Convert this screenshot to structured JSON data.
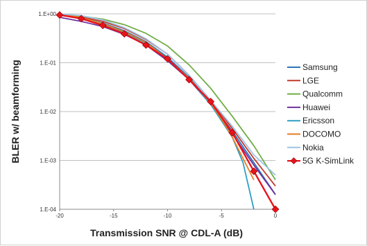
{
  "chart_data": {
    "type": "line",
    "xlabel": "Transmission SNR  @ CDL-A (dB)",
    "ylabel": "BLER w/ beamforming",
    "xlim": [
      -20,
      0
    ],
    "ylim": [
      0.0001,
      1
    ],
    "yscale": "log",
    "grid": "horizontal",
    "legend": "right",
    "xticks": [
      "-20",
      "-15",
      "-10",
      "-5",
      "0"
    ],
    "yticks": [
      "1.E+00",
      "1.E-01",
      "1.E-02",
      "1.E-03",
      "1.E-04"
    ],
    "series": [
      {
        "name": "Samsung",
        "color": "#2e75b6",
        "marker": "none",
        "x": [
          -20,
          -18,
          -16,
          -14,
          -12,
          -10,
          -8,
          -6,
          -4,
          -2,
          0
        ],
        "y": [
          1.0,
          0.83,
          0.65,
          0.45,
          0.27,
          0.13,
          0.05,
          0.015,
          0.004,
          0.0009,
          0.0002
        ]
      },
      {
        "name": "LGE",
        "color": "#c0392b",
        "marker": "none",
        "x": [
          -20,
          -18,
          -16,
          -14,
          -12,
          -10,
          -8,
          -6,
          -4,
          -2,
          0
        ],
        "y": [
          1.0,
          0.86,
          0.7,
          0.5,
          0.3,
          0.15,
          0.055,
          0.017,
          0.0045,
          0.0011,
          0.0003
        ]
      },
      {
        "name": "Qualcomm",
        "color": "#70ad47",
        "marker": "none",
        "x": [
          -20,
          -18,
          -16,
          -14,
          -12,
          -10,
          -8,
          -6,
          -4,
          -2,
          0
        ],
        "y": [
          1.0,
          0.9,
          0.78,
          0.6,
          0.4,
          0.22,
          0.09,
          0.03,
          0.008,
          0.002,
          0.0004
        ]
      },
      {
        "name": "Huawei",
        "color": "#7030a0",
        "marker": "none",
        "x": [
          -20,
          -18,
          -16,
          -14,
          -12,
          -10,
          -8,
          -6,
          -4,
          -2,
          0
        ],
        "y": [
          0.85,
          0.7,
          0.55,
          0.38,
          0.23,
          0.11,
          0.045,
          0.014,
          0.0035,
          0.0008,
          0.0002
        ]
      },
      {
        "name": "Ericsson",
        "color": "#2e9fc4",
        "marker": "none",
        "x": [
          -20,
          -18,
          -16,
          -14,
          -12,
          -10,
          -8,
          -6,
          -4,
          -3,
          -2
        ],
        "y": [
          1.0,
          0.82,
          0.62,
          0.42,
          0.25,
          0.12,
          0.047,
          0.014,
          0.003,
          0.0009,
          0.0001
        ]
      },
      {
        "name": "DOCOMO",
        "color": "#e67e22",
        "marker": "none",
        "x": [
          -20,
          -18,
          -16,
          -14,
          -12,
          -10,
          -8,
          -6,
          -5,
          -4,
          -3,
          -2
        ],
        "y": [
          1.0,
          0.84,
          0.63,
          0.43,
          0.26,
          0.12,
          0.048,
          0.015,
          0.007,
          0.003,
          0.0011,
          0.0004
        ]
      },
      {
        "name": "Nokia",
        "color": "#9dc3e6",
        "marker": "none",
        "x": [
          -20,
          -18,
          -16,
          -14,
          -12,
          -10,
          -8,
          -6,
          -4,
          -2,
          0
        ],
        "y": [
          1.0,
          0.92,
          0.75,
          0.52,
          0.31,
          0.15,
          0.055,
          0.017,
          0.005,
          0.0013,
          0.0005
        ]
      },
      {
        "name": "5G K-SimLink",
        "color": "#e8141c",
        "marker": "diamond",
        "x": [
          -20,
          -18,
          -16,
          -14,
          -12,
          -10,
          -8,
          -6,
          -4,
          -2,
          0
        ],
        "y": [
          0.95,
          0.8,
          0.58,
          0.39,
          0.23,
          0.12,
          0.045,
          0.016,
          0.0037,
          0.0006,
          0.0001
        ]
      }
    ]
  }
}
